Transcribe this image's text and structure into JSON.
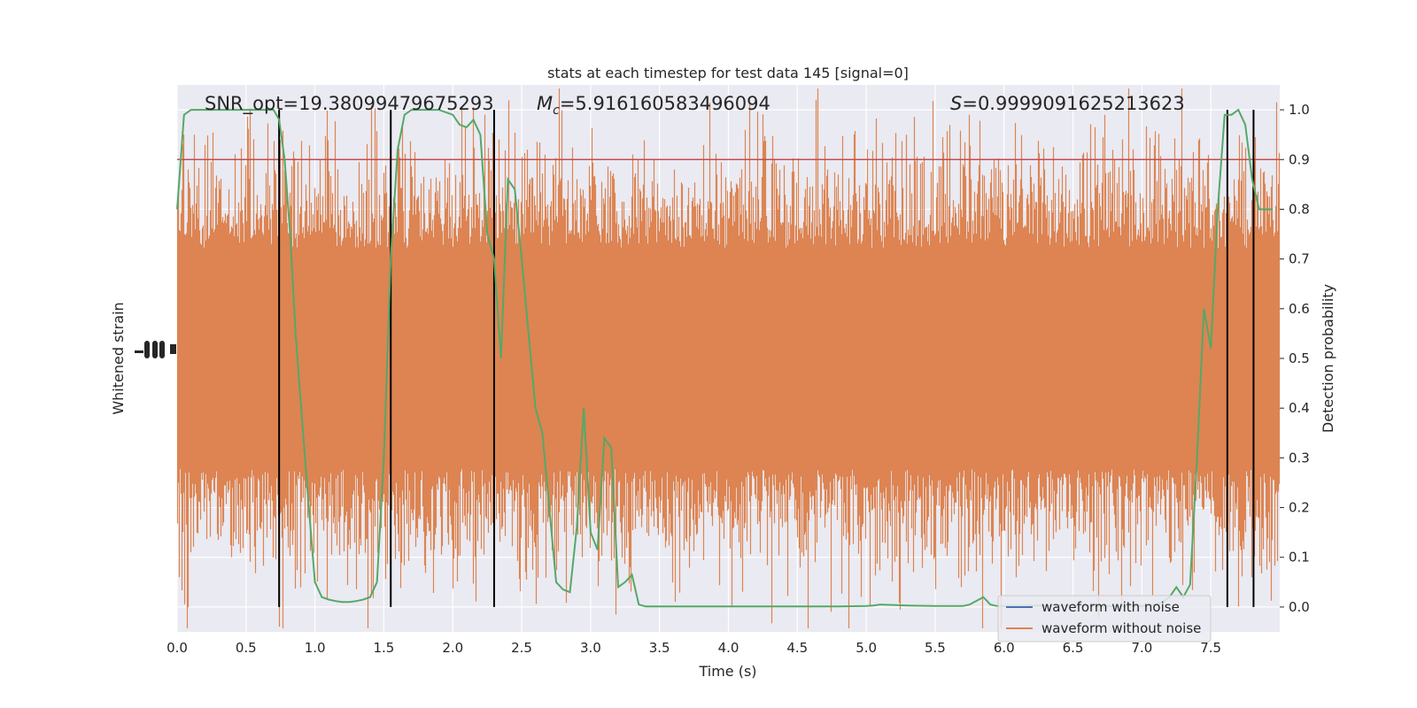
{
  "chart_data": {
    "type": "line",
    "title": "stats at each timestep for test data 145 [signal=0]",
    "xlabel": "Time (s)",
    "ylabel_left": "Whitened strain",
    "ylabel_right": "Detection probability",
    "xlim": [
      0,
      8
    ],
    "ylim_right": [
      -0.05,
      1.05
    ],
    "x_ticks": [
      "0.0",
      "0.5",
      "1.0",
      "1.5",
      "2.0",
      "2.5",
      "3.0",
      "3.5",
      "4.0",
      "4.5",
      "5.0",
      "5.5",
      "6.0",
      "6.5",
      "7.0",
      "7.5"
    ],
    "y_ticks_right": [
      "0.0",
      "0.1",
      "0.2",
      "0.3",
      "0.4",
      "0.5",
      "0.6",
      "0.7",
      "0.8",
      "0.9",
      "1.0"
    ],
    "grid": true,
    "threshold": 0.9,
    "vlines": [
      0.74,
      1.55,
      2.3,
      7.62,
      7.81
    ],
    "annotations": {
      "snr": "SNR_opt=19.38099479675293",
      "mc_symbol": "M",
      "mc_sub": "c",
      "mc_value": "=5.916160583496094",
      "s_symbol": "S",
      "s_value": "=0.9999091625213623"
    },
    "legend": {
      "position": "lower-right",
      "entries": [
        "waveform with noise",
        "waveform without noise"
      ]
    },
    "colors": {
      "noise": "#4c72b0",
      "nonoise": "#dd8452",
      "prob": "#55a868",
      "threshold": "#c44e52",
      "vline": "#000000",
      "background": "#eaeaf2",
      "grid": "#ffffff"
    },
    "series": [
      {
        "name": "Detection probability",
        "x": [
          0.0,
          0.05,
          0.1,
          0.15,
          0.2,
          0.25,
          0.3,
          0.35,
          0.4,
          0.45,
          0.5,
          0.55,
          0.6,
          0.65,
          0.7,
          0.74,
          0.78,
          0.82,
          0.86,
          0.9,
          0.95,
          1.0,
          1.05,
          1.1,
          1.15,
          1.2,
          1.25,
          1.3,
          1.35,
          1.4,
          1.45,
          1.5,
          1.55,
          1.6,
          1.65,
          1.7,
          1.75,
          1.8,
          1.85,
          1.9,
          1.95,
          2.0,
          2.05,
          2.1,
          2.15,
          2.2,
          2.25,
          2.3,
          2.35,
          2.4,
          2.45,
          2.5,
          2.55,
          2.6,
          2.65,
          2.7,
          2.75,
          2.8,
          2.85,
          2.9,
          2.95,
          3.0,
          3.05,
          3.1,
          3.15,
          3.2,
          3.25,
          3.3,
          3.35,
          3.4,
          3.45,
          3.5,
          3.55,
          3.6,
          3.65,
          3.7,
          3.8,
          3.9,
          4.0,
          4.2,
          4.4,
          4.6,
          4.8,
          5.0,
          5.05,
          5.1,
          5.3,
          5.5,
          5.7,
          5.75,
          5.85,
          5.9,
          5.95,
          6.0,
          6.2,
          6.4,
          6.6,
          6.8,
          7.0,
          7.1,
          7.15,
          7.2,
          7.25,
          7.3,
          7.35,
          7.4,
          7.45,
          7.5,
          7.55,
          7.6,
          7.65,
          7.7,
          7.75,
          7.8,
          7.85,
          7.9,
          7.95
        ],
        "y": [
          0.8,
          0.99,
          1.0,
          1.0,
          1.0,
          1.0,
          1.0,
          1.0,
          1.0,
          1.0,
          1.0,
          1.0,
          1.0,
          1.0,
          1.0,
          0.98,
          0.9,
          0.75,
          0.55,
          0.4,
          0.22,
          0.05,
          0.02,
          0.015,
          0.012,
          0.01,
          0.01,
          0.012,
          0.015,
          0.02,
          0.05,
          0.3,
          0.7,
          0.92,
          0.99,
          1.0,
          1.0,
          1.0,
          1.0,
          1.0,
          0.995,
          0.99,
          0.97,
          0.965,
          0.98,
          0.95,
          0.75,
          0.7,
          0.5,
          0.86,
          0.84,
          0.7,
          0.55,
          0.4,
          0.35,
          0.2,
          0.05,
          0.035,
          0.03,
          0.16,
          0.4,
          0.15,
          0.115,
          0.34,
          0.32,
          0.04,
          0.05,
          0.065,
          0.005,
          0.001,
          0.001,
          0.001,
          0.001,
          0.001,
          0.001,
          0.001,
          0.001,
          0.001,
          0.001,
          0.001,
          0.001,
          0.001,
          0.001,
          0.002,
          0.003,
          0.005,
          0.003,
          0.002,
          0.002,
          0.005,
          0.02,
          0.005,
          0.002,
          0.002,
          0.003,
          0.003,
          0.002,
          0.002,
          0.002,
          0.005,
          0.01,
          0.02,
          0.04,
          0.02,
          0.045,
          0.3,
          0.6,
          0.52,
          0.8,
          0.99,
          0.99,
          1.0,
          0.97,
          0.86,
          0.8,
          0.8,
          0.8
        ]
      }
    ]
  }
}
